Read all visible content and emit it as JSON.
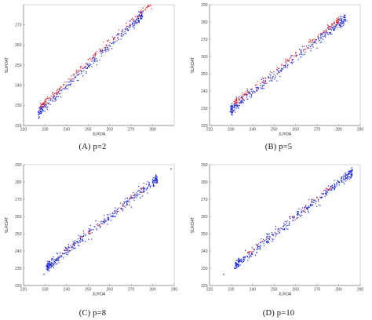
{
  "colors": {
    "red_series": "#e8202a",
    "blue_series": "#1f2bd6",
    "axis": "#7f7f7f",
    "frame": "#bdbdbd"
  },
  "chart_data": [
    {
      "type": "scatter",
      "caption": "(A) p=2",
      "xlabel": "JLROA",
      "ylabel": "SLROAT",
      "xlim": [
        220,
        290
      ],
      "ylim": [
        220,
        280
      ],
      "xticks": [
        "220",
        "230",
        "240",
        "250",
        "260",
        "270",
        "280"
      ],
      "yticks": [
        "220",
        "230",
        "240",
        "250",
        "260",
        "270"
      ],
      "grid": false,
      "series": [
        {
          "color": "#e8202a",
          "x_range": [
            228,
            279
          ],
          "slope": 1.0,
          "intercept": 1.6,
          "spread": 0.9,
          "count": 170
        },
        {
          "color": "#1f2bd6",
          "x_range": [
            227,
            275
          ],
          "slope": 1.0,
          "intercept": -0.5,
          "spread": 1.2,
          "count": 320
        }
      ]
    },
    {
      "type": "scatter",
      "caption": "(B) p=5",
      "xlabel": "JLROA",
      "ylabel": "SLROAT",
      "xlim": [
        220,
        290
      ],
      "ylim": [
        220,
        290
      ],
      "xticks": [
        "220",
        "230",
        "240",
        "250",
        "260",
        "270",
        "280",
        "290"
      ],
      "yticks": [
        "220",
        "230",
        "240",
        "250",
        "260",
        "270",
        "280",
        "290"
      ],
      "grid": false,
      "series": [
        {
          "color": "#e8202a",
          "x_range": [
            232,
            280
          ],
          "slope": 1.0,
          "intercept": 1.2,
          "spread": 1.0,
          "count": 140
        },
        {
          "color": "#1f2bd6",
          "x_range": [
            230,
            283
          ],
          "slope": 1.0,
          "intercept": -0.8,
          "spread": 1.4,
          "count": 380
        }
      ]
    },
    {
      "type": "scatter",
      "caption": "(C) p=8",
      "xlabel": "JLROA",
      "ylabel": "SLROAT",
      "xlim": [
        220,
        290
      ],
      "ylim": [
        220,
        290
      ],
      "xticks": [
        "220",
        "230",
        "240",
        "250",
        "260",
        "270",
        "280",
        "290"
      ],
      "yticks": [
        "220",
        "230",
        "240",
        "250",
        "260",
        "270",
        "280",
        "290"
      ],
      "grid": false,
      "series": [
        {
          "color": "#e8202a",
          "x_range": [
            236,
            275
          ],
          "slope": 1.0,
          "intercept": 0.6,
          "spread": 0.9,
          "count": 40
        },
        {
          "color": "#1f2bd6",
          "x_range": [
            231,
            282
          ],
          "slope": 1.0,
          "intercept": -0.3,
          "spread": 1.4,
          "count": 420
        }
      ],
      "outliers": [
        {
          "x": 229.5,
          "y": 226.5,
          "color": "#1f2bd6"
        },
        {
          "x": 288.5,
          "y": 287.5,
          "color": "#1f2bd6"
        }
      ]
    },
    {
      "type": "scatter",
      "caption": "(D) p=10",
      "xlabel": "JLROA",
      "ylabel": "SLROAT",
      "xlim": [
        220,
        290
      ],
      "ylim": [
        220,
        290
      ],
      "xticks": [
        "220",
        "230",
        "240",
        "250",
        "260",
        "270",
        "280",
        "290"
      ],
      "yticks": [
        "220",
        "230",
        "240",
        "250",
        "260",
        "270",
        "280",
        "290"
      ],
      "grid": false,
      "series": [
        {
          "color": "#e8202a",
          "x_range": [
            238,
            276
          ],
          "slope": 1.0,
          "intercept": 0.6,
          "spread": 0.9,
          "count": 40
        },
        {
          "color": "#1f2bd6",
          "x_range": [
            232,
            286
          ],
          "slope": 1.0,
          "intercept": -0.3,
          "spread": 1.4,
          "count": 420
        }
      ],
      "outliers": [
        {
          "x": 226.5,
          "y": 226.5,
          "color": "#1f2bd6"
        },
        {
          "x": 277,
          "y": 276.5,
          "color": "#1f2bd6"
        }
      ]
    }
  ]
}
